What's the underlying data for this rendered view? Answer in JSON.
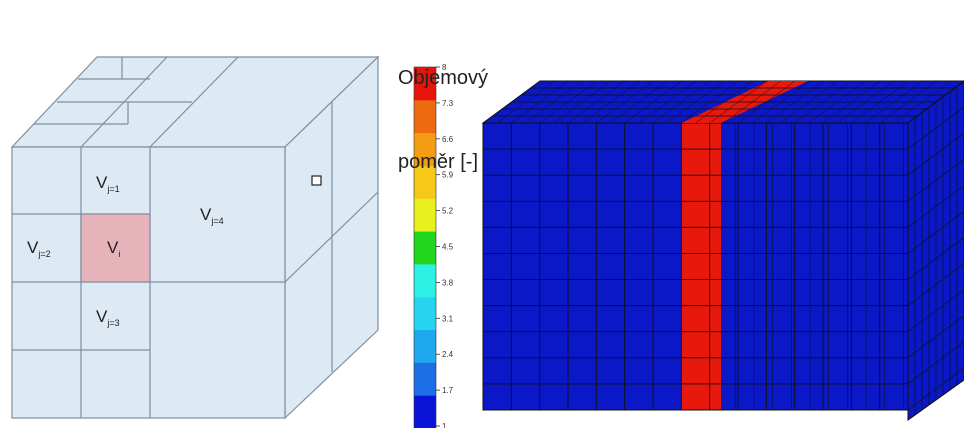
{
  "diagram": {
    "cells": {
      "top": {
        "letter": "V",
        "sub": "j=1"
      },
      "left": {
        "letter": "V",
        "sub": "j=2"
      },
      "center": {
        "letter": "V",
        "sub": "i"
      },
      "bottom": {
        "letter": "V",
        "sub": "j=3"
      },
      "big": {
        "letter": "V",
        "sub": "j=4"
      }
    },
    "colors": {
      "cube_face": "#dde9f3",
      "cube_edge": "#7f8fa0",
      "highlight": "#e6b3bb"
    }
  },
  "colorbar": {
    "title_line1": "Objemový",
    "title_line2": "poměr [-]",
    "ticks": [
      "8",
      "7.3",
      "6.6",
      "5.9",
      "5.2",
      "4.5",
      "3.8",
      "3.1",
      "2.4",
      "1.7",
      "1"
    ],
    "colors": [
      "#0a14d8",
      "#1e6fe6",
      "#1ea8f0",
      "#26d4f0",
      "#2cf0e4",
      "#22d61e",
      "#e8f01e",
      "#f5c81a",
      "#f59b14",
      "#ee6a10",
      "#e8140c"
    ]
  },
  "mesh": {
    "colors": {
      "base": "#0b18c8",
      "line": "#101010",
      "highlight": "#e8180c"
    }
  }
}
